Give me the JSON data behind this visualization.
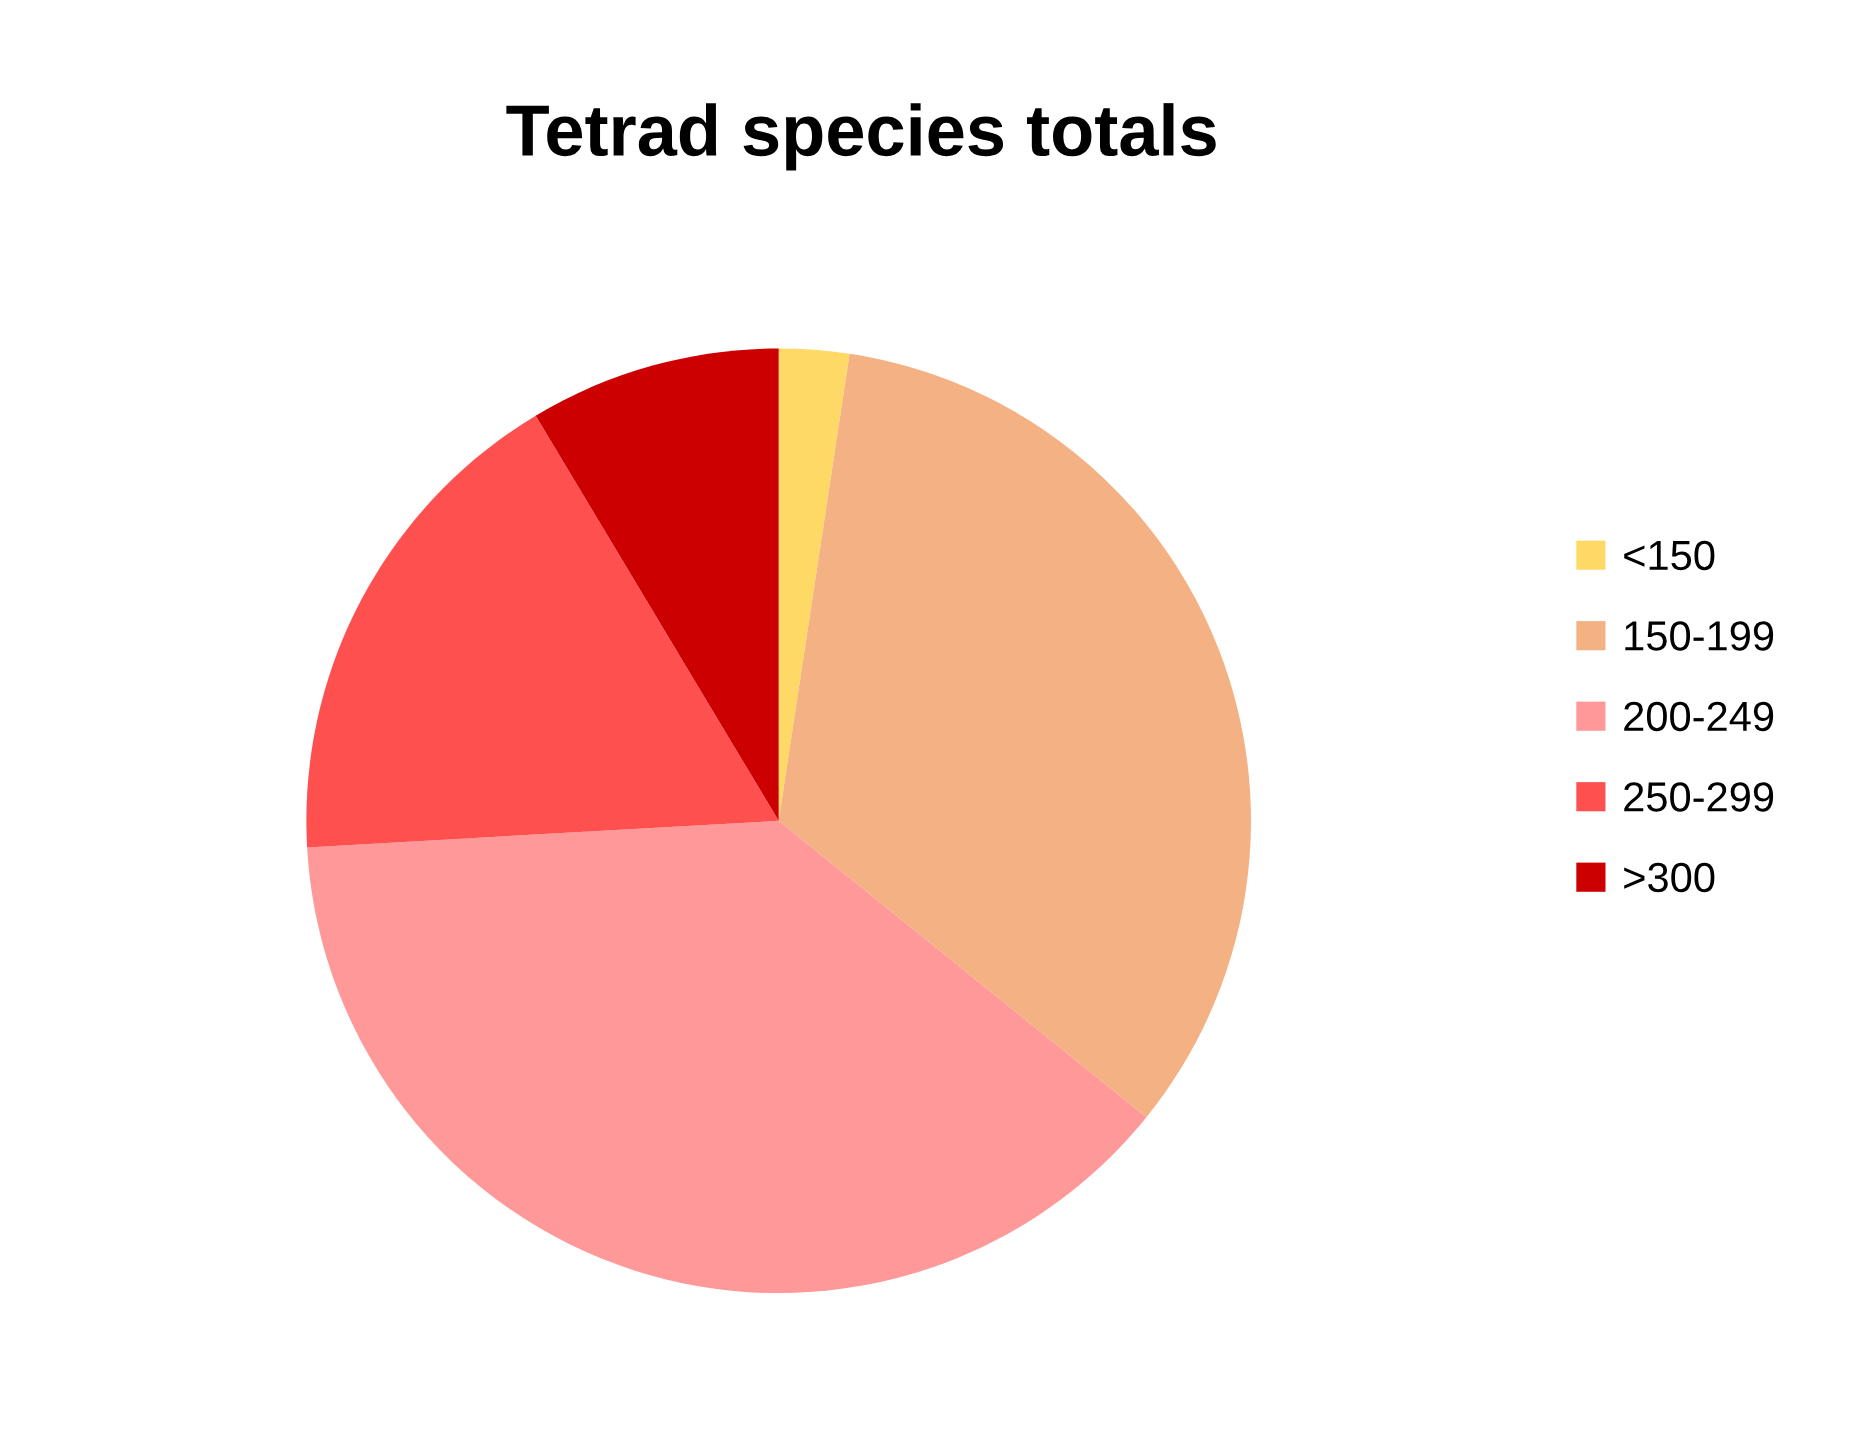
{
  "chart_data": {
    "type": "pie",
    "title": "Tetrad species totals",
    "categories": [
      "<150",
      "150-199",
      "200-249",
      "250-299",
      ">300"
    ],
    "values": [
      2.4,
      33.4,
      38.3,
      17.3,
      8.6
    ],
    "colors": [
      "#ffd966",
      "#f4b183",
      "#ff9999",
      "#ff5050",
      "#cc0000"
    ],
    "legend": "right"
  }
}
